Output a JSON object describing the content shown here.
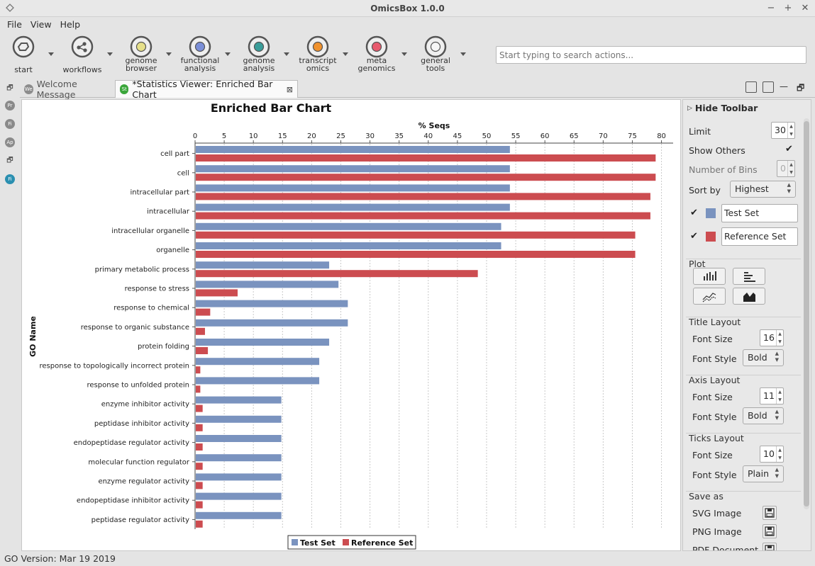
{
  "window": {
    "title": "OmicsBox 1.0.0"
  },
  "menu": [
    "File",
    "View",
    "Help"
  ],
  "toolbar": {
    "tools": [
      {
        "id": "start",
        "lines": [
          "start"
        ],
        "color": "#6d6d6d"
      },
      {
        "id": "workflows",
        "lines": [
          "workflows"
        ],
        "color": "#6d6d6d"
      },
      {
        "id": "genome-browser",
        "lines": [
          "genome",
          "browser"
        ],
        "color": "#e6e08a"
      },
      {
        "id": "functional-analysis",
        "lines": [
          "functional",
          "analysis"
        ],
        "color": "#7b8fd8"
      },
      {
        "id": "genome-analysis",
        "lines": [
          "genome",
          "analysis"
        ],
        "color": "#3a9e9a"
      },
      {
        "id": "transcript-omics",
        "lines": [
          "transcript",
          "omics"
        ],
        "color": "#f0922e"
      },
      {
        "id": "meta-genomics",
        "lines": [
          "meta",
          "genomics"
        ],
        "color": "#e85a6e"
      },
      {
        "id": "general-tools",
        "lines": [
          "general",
          "tools"
        ],
        "color": "#f6f6f6"
      }
    ],
    "search_placeholder": "Start typing to search actions..."
  },
  "left_strip": [
    "Pr",
    "Fi",
    "Ap",
    "Fi"
  ],
  "tabs": [
    {
      "label": "Welcome Message",
      "icon": "We",
      "icon_color": "#8c8c8c"
    },
    {
      "label": "*Statistics Viewer: Enriched Bar Chart",
      "icon": "St",
      "icon_color": "#3aa63a"
    }
  ],
  "chart_data": {
    "type": "bar",
    "orientation": "horizontal",
    "title": "Enriched Bar Chart",
    "xlabel": "% Seqs",
    "ylabel": "GO Name",
    "xlim": [
      0,
      82
    ],
    "xticks": [
      0,
      5,
      10,
      15,
      20,
      25,
      30,
      35,
      40,
      45,
      50,
      55,
      60,
      65,
      70,
      75,
      80
    ],
    "grid": true,
    "legend": "bottom",
    "categories": [
      "cell part",
      "cell",
      "intracellular part",
      "intracellular",
      "intracellular organelle",
      "organelle",
      "primary metabolic process",
      "response to stress",
      "response to chemical",
      "response to organic substance",
      "protein folding",
      "response to topologically incorrect protein",
      "response to unfolded protein",
      "enzyme inhibitor activity",
      "peptidase inhibitor activity",
      "endopeptidase regulator activity",
      "molecular function regulator",
      "enzyme regulator activity",
      "endopeptidase inhibitor activity",
      "peptidase regulator activity"
    ],
    "series": [
      {
        "name": "Test Set",
        "color": "#7a93bf",
        "values": [
          54.0,
          54.0,
          54.0,
          54.0,
          52.5,
          52.5,
          23.0,
          24.6,
          26.2,
          26.2,
          23.0,
          21.3,
          21.3,
          14.8,
          14.8,
          14.8,
          14.8,
          14.8,
          14.8,
          14.8
        ]
      },
      {
        "name": "Reference Set",
        "color": "#cc4c50",
        "values": [
          79.0,
          79.0,
          78.1,
          78.1,
          75.5,
          75.5,
          48.5,
          7.3,
          2.6,
          1.7,
          2.2,
          0.9,
          0.9,
          1.3,
          1.3,
          1.3,
          1.3,
          1.3,
          1.3,
          1.3
        ]
      }
    ]
  },
  "panel": {
    "hide_toolbar": "Hide Toolbar",
    "limit_label": "Limit",
    "limit_value": "30",
    "show_others_label": "Show Others",
    "bins_label": "Number of Bins",
    "bins_value": "0",
    "sort_label": "Sort by",
    "sort_value": "Highest",
    "series": [
      {
        "label": "Test Set",
        "color": "#7a93bf"
      },
      {
        "label": "Reference Set",
        "color": "#cc4c50"
      }
    ],
    "plot_label": "Plot",
    "title_layout": {
      "label": "Title Layout",
      "size_label": "Font Size",
      "size": "16",
      "style_label": "Font Style",
      "style": "Bold"
    },
    "axis_layout": {
      "label": "Axis Layout",
      "size_label": "Font Size",
      "size": "11",
      "style_label": "Font Style",
      "style": "Bold"
    },
    "ticks_layout": {
      "label": "Ticks Layout",
      "size_label": "Font Size",
      "size": "10",
      "style_label": "Font Style",
      "style": "Plain"
    },
    "save_as": {
      "label": "Save as",
      "svg": "SVG Image",
      "png": "PNG Image",
      "pdf": "PDF Document"
    }
  },
  "status": "GO Version: Mar 19 2019"
}
